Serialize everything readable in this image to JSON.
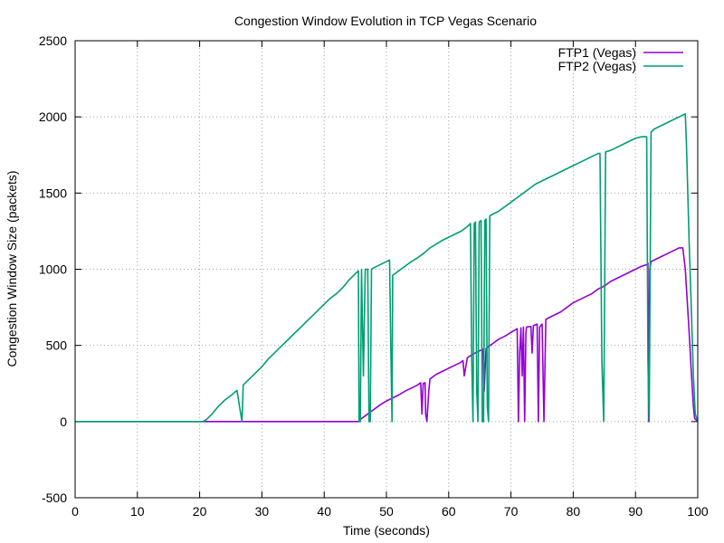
{
  "chart_data": {
    "type": "line",
    "title": "Congestion Window Evolution in TCP Vegas Scenario",
    "xlabel": "Time (seconds)",
    "ylabel": "Congestion Window Size (packets)",
    "xlim": [
      0,
      100
    ],
    "ylim": [
      -500,
      2500
    ],
    "xticks": [
      0,
      10,
      20,
      30,
      40,
      50,
      60,
      70,
      80,
      90,
      100
    ],
    "yticks": [
      -500,
      0,
      500,
      1000,
      1500,
      2000,
      2500
    ],
    "grid": true,
    "legend_position": "top-right",
    "series": [
      {
        "name": "FTP1 (Vegas)",
        "color": "#9400d3",
        "points": [
          [
            0,
            0
          ],
          [
            45.5,
            0
          ],
          [
            46,
            20
          ],
          [
            47,
            50
          ],
          [
            48,
            80
          ],
          [
            49,
            110
          ],
          [
            50,
            135
          ],
          [
            51,
            155
          ],
          [
            52,
            175
          ],
          [
            53,
            200
          ],
          [
            54,
            220
          ],
          [
            55,
            240
          ],
          [
            55.5,
            255
          ],
          [
            55.7,
            50
          ],
          [
            55.9,
            250
          ],
          [
            56.2,
            255
          ],
          [
            56.3,
            50
          ],
          [
            56.5,
            0
          ],
          [
            56.8,
            200
          ],
          [
            57,
            280
          ],
          [
            58,
            310
          ],
          [
            59,
            330
          ],
          [
            60,
            350
          ],
          [
            61,
            370
          ],
          [
            62,
            390
          ],
          [
            62.3,
            400
          ],
          [
            62.5,
            300
          ],
          [
            63,
            420
          ],
          [
            64,
            445
          ],
          [
            65,
            465
          ],
          [
            65.5,
            475
          ],
          [
            65.7,
            200
          ],
          [
            66,
            480
          ],
          [
            67,
            510
          ],
          [
            68,
            540
          ],
          [
            69,
            560
          ],
          [
            70,
            585
          ],
          [
            71,
            610
          ],
          [
            71.2,
            0
          ],
          [
            71.4,
            450
          ],
          [
            71.6,
            615
          ],
          [
            71.8,
            300
          ],
          [
            72,
            620
          ],
          [
            72.2,
            0
          ],
          [
            72.4,
            580
          ],
          [
            72.5,
            620
          ],
          [
            73.2,
            625
          ],
          [
            73.4,
            450
          ],
          [
            73.6,
            630
          ],
          [
            74.2,
            640
          ],
          [
            74.4,
            0
          ],
          [
            74.6,
            620
          ],
          [
            75,
            640
          ],
          [
            75.3,
            0
          ],
          [
            75.6,
            670
          ],
          [
            76,
            680
          ],
          [
            77,
            700
          ],
          [
            78,
            720
          ],
          [
            79,
            750
          ],
          [
            80,
            780
          ],
          [
            81,
            800
          ],
          [
            82,
            820
          ],
          [
            83,
            840
          ],
          [
            84,
            870
          ],
          [
            85,
            890
          ],
          [
            86,
            920
          ],
          [
            87,
            940
          ],
          [
            88,
            960
          ],
          [
            89,
            980
          ],
          [
            90,
            1000
          ],
          [
            91,
            1020
          ],
          [
            91.8,
            1030
          ],
          [
            92,
            1040
          ],
          [
            92.1,
            0
          ],
          [
            92.3,
            1000
          ],
          [
            92.5,
            1050
          ],
          [
            93,
            1060
          ],
          [
            94,
            1080
          ],
          [
            95,
            1100
          ],
          [
            96,
            1120
          ],
          [
            97,
            1140
          ],
          [
            97.6,
            1140
          ],
          [
            98,
            1000
          ],
          [
            98.6,
            600
          ],
          [
            99,
            300
          ],
          [
            99.3,
            100
          ],
          [
            99.5,
            20
          ],
          [
            100,
            0
          ]
        ]
      },
      {
        "name": "FTP2 (Vegas)",
        "color": "#009e73",
        "points": [
          [
            0,
            0
          ],
          [
            20.5,
            0
          ],
          [
            21,
            10
          ],
          [
            22,
            50
          ],
          [
            23,
            100
          ],
          [
            24,
            140
          ],
          [
            25,
            170
          ],
          [
            26,
            205
          ],
          [
            26.4,
            100
          ],
          [
            26.8,
            0
          ],
          [
            27,
            240
          ],
          [
            28,
            280
          ],
          [
            29,
            320
          ],
          [
            30,
            360
          ],
          [
            31,
            410
          ],
          [
            32,
            450
          ],
          [
            33,
            490
          ],
          [
            34,
            530
          ],
          [
            35,
            570
          ],
          [
            36,
            610
          ],
          [
            37,
            650
          ],
          [
            38,
            690
          ],
          [
            39,
            730
          ],
          [
            40,
            770
          ],
          [
            41,
            810
          ],
          [
            42,
            840
          ],
          [
            43,
            880
          ],
          [
            44,
            930
          ],
          [
            45,
            970
          ],
          [
            45.5,
            990
          ],
          [
            45.6,
            0
          ],
          [
            45.8,
            0
          ],
          [
            46,
            1000
          ],
          [
            46.3,
            300
          ],
          [
            46.6,
            1000
          ],
          [
            47,
            1000
          ],
          [
            47.2,
            0
          ],
          [
            47.4,
            0
          ],
          [
            47.6,
            1000
          ],
          [
            48,
            1010
          ],
          [
            49,
            1030
          ],
          [
            50,
            1050
          ],
          [
            50.5,
            1060
          ],
          [
            50.7,
            500
          ],
          [
            50.9,
            0
          ],
          [
            51,
            960
          ],
          [
            52,
            990
          ],
          [
            53,
            1020
          ],
          [
            54,
            1050
          ],
          [
            55,
            1075
          ],
          [
            56,
            1105
          ],
          [
            57,
            1140
          ],
          [
            58,
            1165
          ],
          [
            59,
            1190
          ],
          [
            60,
            1210
          ],
          [
            61,
            1230
          ],
          [
            62,
            1250
          ],
          [
            63,
            1280
          ],
          [
            63.5,
            1300
          ],
          [
            63.7,
            400
          ],
          [
            63.9,
            0
          ],
          [
            64.1,
            1300
          ],
          [
            64.3,
            1310
          ],
          [
            64.5,
            200
          ],
          [
            64.7,
            0
          ],
          [
            64.9,
            1310
          ],
          [
            65.2,
            1320
          ],
          [
            65.4,
            0
          ],
          [
            65.6,
            0
          ],
          [
            65.8,
            1320
          ],
          [
            66,
            1330
          ],
          [
            66.2,
            100
          ],
          [
            66.4,
            0
          ],
          [
            66.6,
            1350
          ],
          [
            67,
            1360
          ],
          [
            68,
            1380
          ],
          [
            69,
            1410
          ],
          [
            70,
            1440
          ],
          [
            71,
            1470
          ],
          [
            72,
            1500
          ],
          [
            73,
            1530
          ],
          [
            74,
            1560
          ],
          [
            75,
            1580
          ],
          [
            76,
            1600
          ],
          [
            77,
            1620
          ],
          [
            78,
            1640
          ],
          [
            79,
            1660
          ],
          [
            80,
            1680
          ],
          [
            81,
            1700
          ],
          [
            82,
            1720
          ],
          [
            83,
            1740
          ],
          [
            84,
            1760
          ],
          [
            84.3,
            1760
          ],
          [
            84.6,
            400
          ],
          [
            84.9,
            0
          ],
          [
            85.2,
            1770
          ],
          [
            86,
            1780
          ],
          [
            87,
            1800
          ],
          [
            88,
            1820
          ],
          [
            89,
            1840
          ],
          [
            90,
            1860
          ],
          [
            91,
            1870
          ],
          [
            91.8,
            1870
          ],
          [
            92,
            400
          ],
          [
            92.2,
            0
          ],
          [
            92.5,
            1900
          ],
          [
            93,
            1920
          ],
          [
            94,
            1940
          ],
          [
            95,
            1960
          ],
          [
            96,
            1980
          ],
          [
            97,
            2000
          ],
          [
            98,
            2020
          ],
          [
            98.2,
            1800
          ],
          [
            98.6,
            1200
          ],
          [
            99,
            700
          ],
          [
            99.3,
            300
          ],
          [
            99.6,
            50
          ],
          [
            100,
            0
          ]
        ]
      }
    ]
  }
}
